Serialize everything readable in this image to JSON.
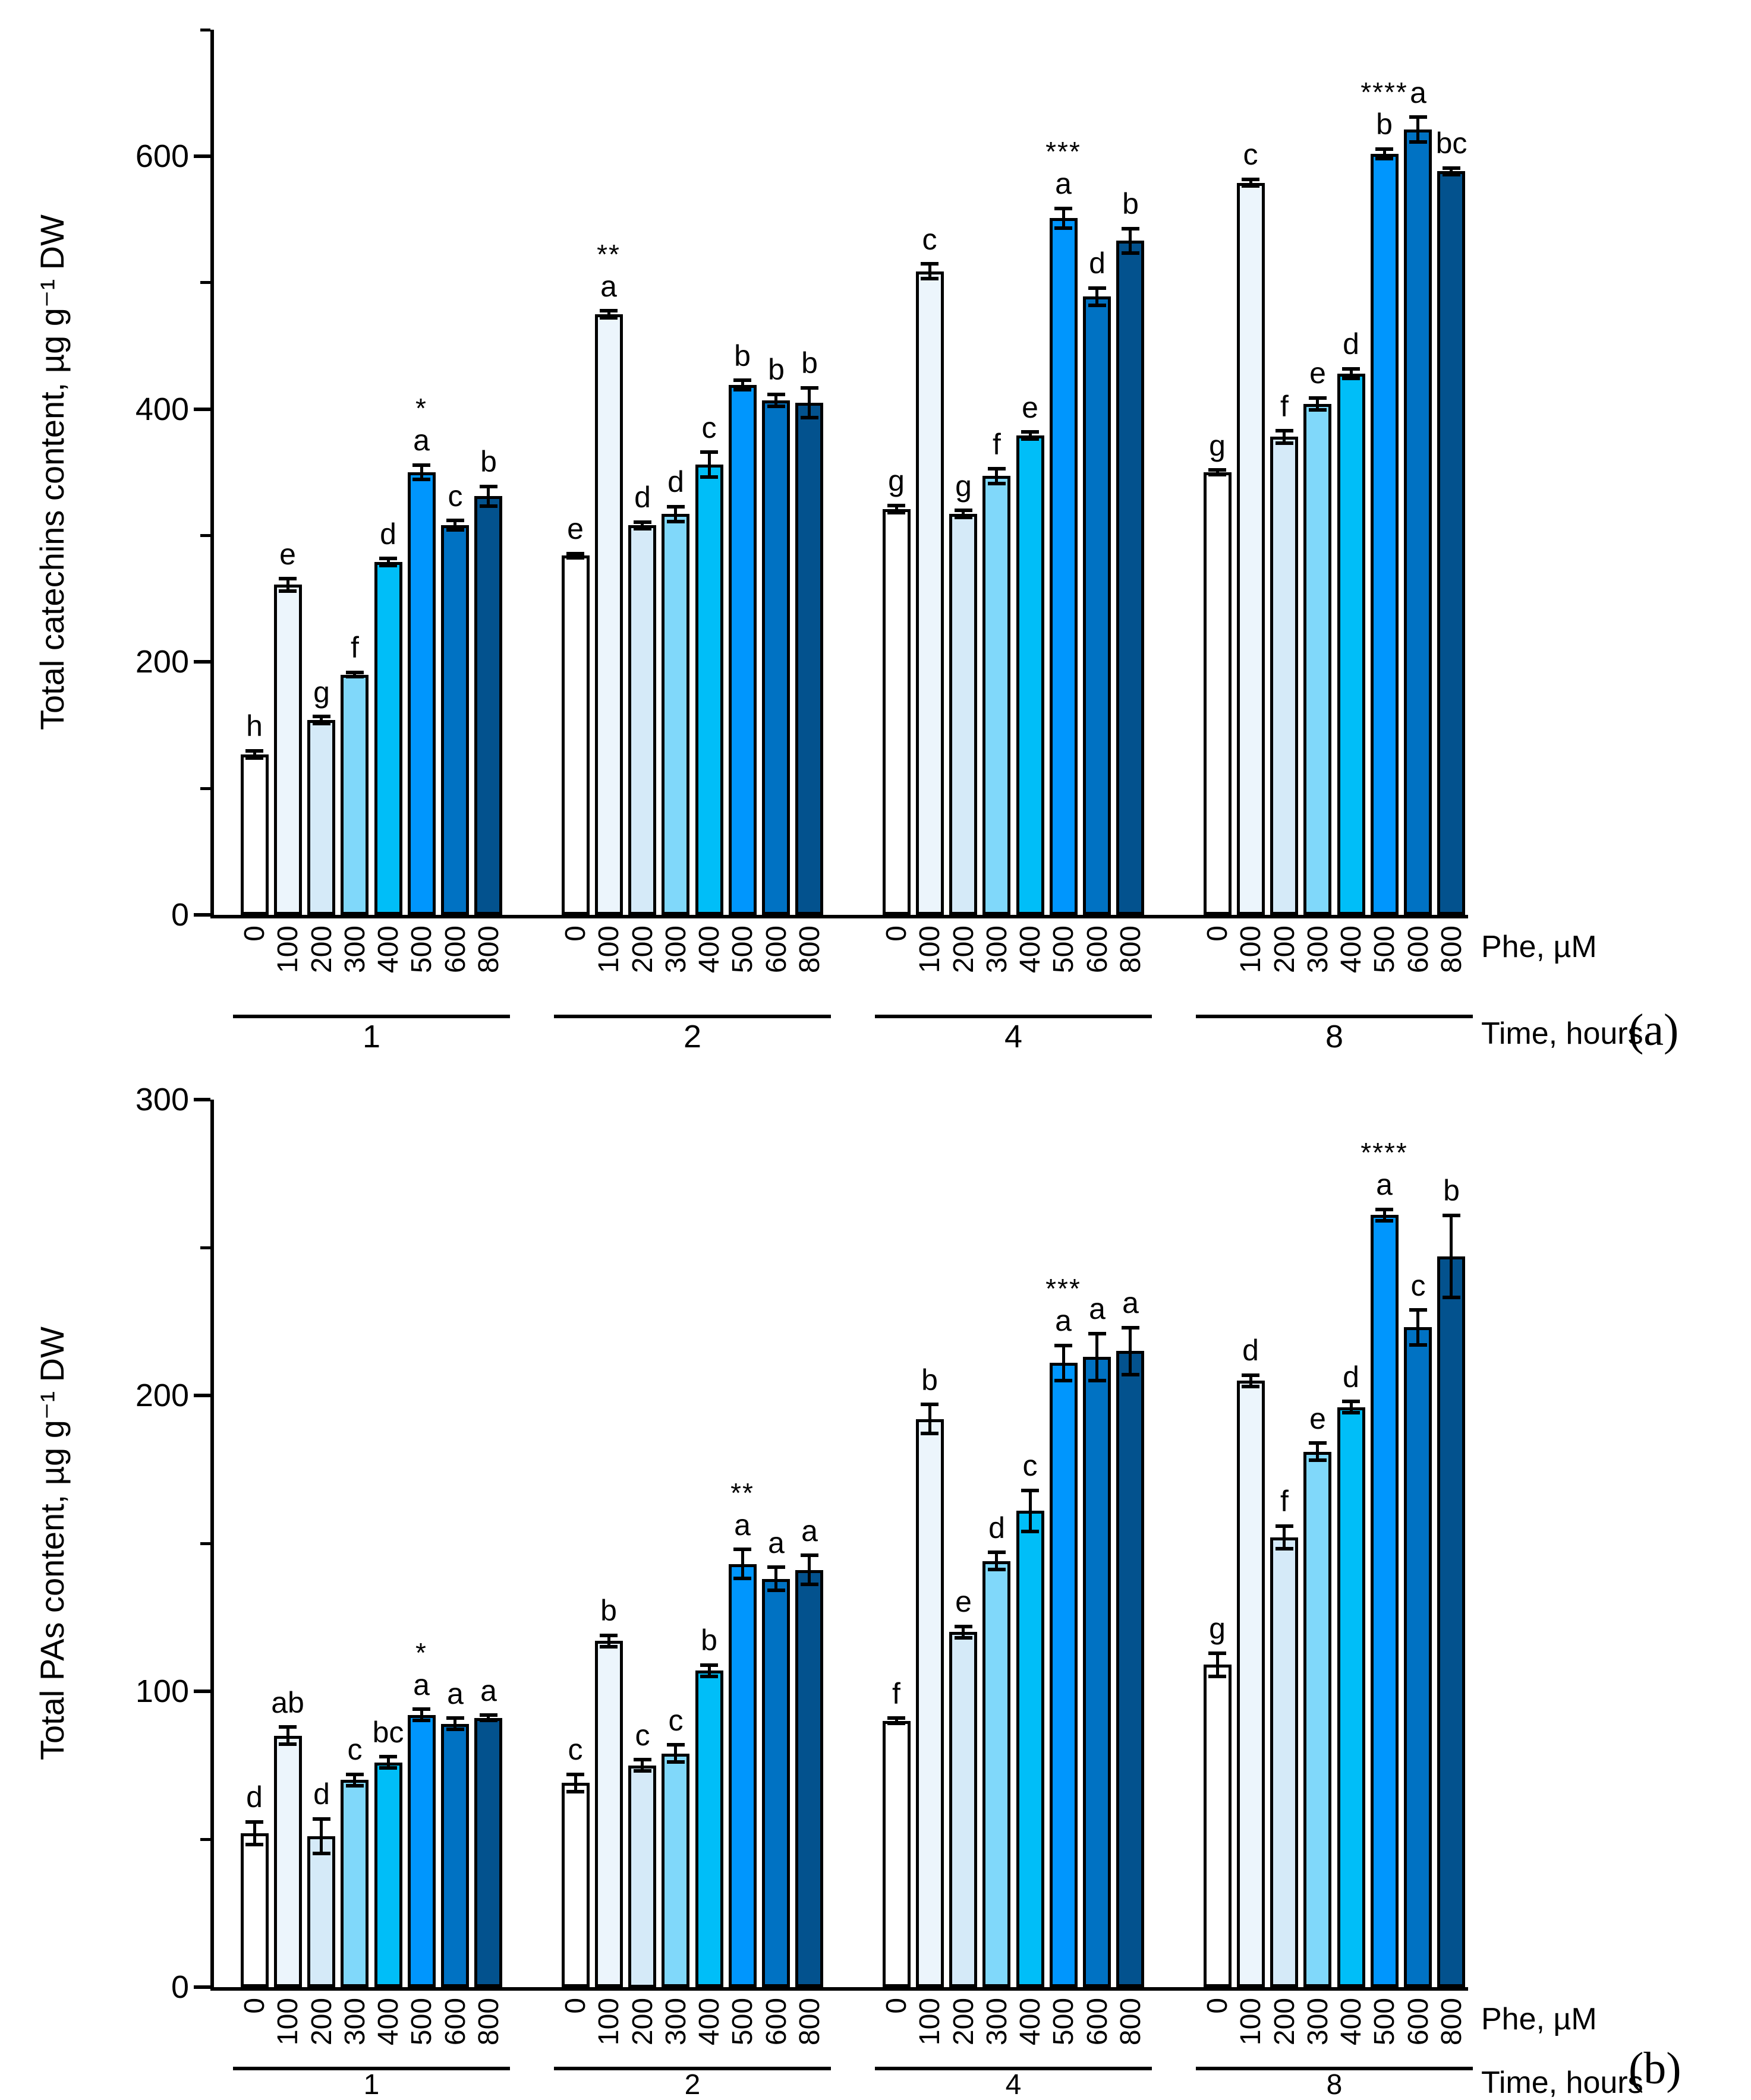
{
  "bar_colors": [
    "#FFFFFF",
    "#ECF5FC",
    "#D5EAF8",
    "#80D8FA",
    "#00BEF8",
    "#0096FD",
    "#0072C3",
    "#03528E"
  ],
  "chart_data": [
    {
      "type": "bar",
      "panel_label": "(a)",
      "title": "",
      "ylabel": "Total catechins content, µg g⁻¹ DW",
      "xlabel": "Phe, µM",
      "xlabel_secondary": "Time, hours",
      "ylim": [
        0,
        700
      ],
      "ytick_major": [
        0,
        200,
        400,
        600
      ],
      "ytick_minor": [
        100,
        300,
        500,
        700
      ],
      "grid": "off",
      "legend": "none",
      "categories": [
        "0",
        "100",
        "200",
        "300",
        "400",
        "500",
        "600",
        "800"
      ],
      "groups": [
        {
          "time": "1",
          "values": [
            127,
            261,
            154,
            190,
            279,
            350,
            308,
            331
          ],
          "errors": [
            3,
            5,
            3,
            2,
            3,
            6,
            4,
            8
          ],
          "letters": [
            "h",
            "e",
            "g",
            "f",
            "d",
            "a",
            "c",
            "b"
          ],
          "stars": [
            "",
            "",
            "",
            "",
            "",
            "*",
            "",
            ""
          ]
        },
        {
          "time": "2",
          "values": [
            284,
            475,
            308,
            317,
            356,
            419,
            407,
            405
          ],
          "errors": [
            2,
            3,
            3,
            6,
            10,
            4,
            5,
            12
          ],
          "letters": [
            "e",
            "a",
            "d",
            "d",
            "c",
            "b",
            "b",
            "b"
          ],
          "stars": [
            "",
            "**",
            "",
            "",
            "",
            "",
            "",
            ""
          ]
        },
        {
          "time": "4",
          "values": [
            321,
            509,
            317,
            347,
            379,
            551,
            489,
            533
          ],
          "errors": [
            3,
            6,
            3,
            6,
            3,
            8,
            7,
            10
          ],
          "letters": [
            "g",
            "c",
            "g",
            "f",
            "e",
            "a",
            "d",
            "b"
          ],
          "stars": [
            "",
            "",
            "",
            "",
            "",
            "***",
            "",
            ""
          ]
        },
        {
          "time": "8",
          "values": [
            350,
            579,
            378,
            404,
            428,
            602,
            621,
            588
          ],
          "errors": [
            2,
            3,
            5,
            5,
            4,
            4,
            10,
            3
          ],
          "letters": [
            "g",
            "c",
            "f",
            "e",
            "d",
            "b",
            "a",
            "bc"
          ],
          "stars": [
            "",
            "",
            "",
            "",
            "",
            "****",
            "",
            ""
          ]
        }
      ]
    },
    {
      "type": "bar",
      "panel_label": "(b)",
      "title": "",
      "ylabel": "Total PAs content, µg g⁻¹ DW",
      "xlabel": "Phe, µM",
      "xlabel_secondary": "Time, hours",
      "ylim": [
        0,
        300
      ],
      "ytick_major": [
        0,
        100,
        200,
        300
      ],
      "ytick_minor": [
        50,
        150,
        250
      ],
      "grid": "off",
      "legend": "none",
      "categories": [
        "0",
        "100",
        "200",
        "300",
        "400",
        "500",
        "600",
        "800"
      ],
      "groups": [
        {
          "time": "1",
          "values": [
            52,
            85,
            51,
            70,
            76,
            92,
            89,
            91
          ],
          "errors": [
            4,
            3,
            6,
            2,
            2,
            2,
            2,
            1
          ],
          "letters": [
            "d",
            "ab",
            "d",
            "c",
            "bc",
            "a",
            "a",
            "a"
          ],
          "stars": [
            "",
            "",
            "",
            "",
            "",
            "*",
            "",
            ""
          ]
        },
        {
          "time": "2",
          "values": [
            69,
            117,
            75,
            79,
            107,
            143,
            138,
            141
          ],
          "errors": [
            3,
            2,
            2,
            3,
            2,
            5,
            4,
            5
          ],
          "letters": [
            "c",
            "b",
            "c",
            "c",
            "b",
            "a",
            "a",
            "a"
          ],
          "stars": [
            "",
            "",
            "",
            "",
            "",
            "**",
            "",
            ""
          ]
        },
        {
          "time": "4",
          "values": [
            90,
            192,
            120,
            144,
            161,
            211,
            213,
            215
          ],
          "errors": [
            1,
            5,
            2,
            3,
            7,
            6,
            8,
            8
          ],
          "letters": [
            "f",
            "b",
            "e",
            "d",
            "c",
            "a",
            "a",
            "a"
          ],
          "stars": [
            "",
            "",
            "",
            "",
            "",
            "***",
            "",
            ""
          ]
        },
        {
          "time": "8",
          "values": [
            109,
            205,
            152,
            181,
            196,
            261,
            223,
            247
          ],
          "errors": [
            4,
            2,
            4,
            3,
            2,
            2,
            6,
            14
          ],
          "letters": [
            "g",
            "d",
            "f",
            "e",
            "d",
            "a",
            "c",
            "b"
          ],
          "stars": [
            "",
            "",
            "",
            "",
            "",
            "****",
            "",
            ""
          ]
        }
      ]
    }
  ]
}
